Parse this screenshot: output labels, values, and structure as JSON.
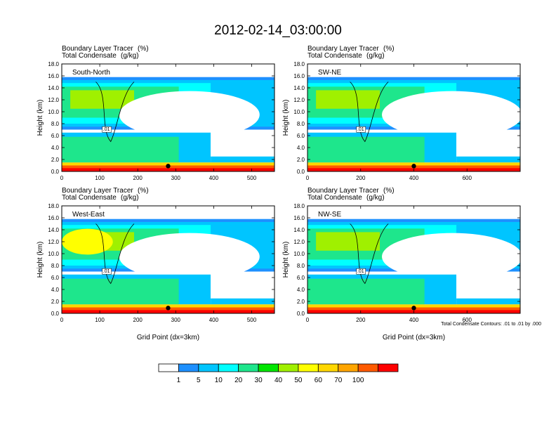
{
  "chart_data": {
    "type": "contour",
    "title": "2012-02-14_03:00:00",
    "subtitle_line1_left": "Boundary Layer Tracer",
    "subtitle_line1_right": "(%)",
    "subtitle_line2_left": "Total Condensate",
    "subtitle_line2_right": "(g/kg)",
    "xlabel": "Grid Point (dx=3km)",
    "ylabel": "Height (km)",
    "ylim": [
      0,
      18
    ],
    "yticks": [
      "0.0",
      "2.0",
      "4.0",
      "6.0",
      "8.0",
      "10.0",
      "12.0",
      "14.0",
      "16.0",
      "18.0"
    ],
    "contour_note": "Total Condensate Contours: .01 to .01 by .000",
    "contour_label": ".01",
    "colorbar": {
      "levels": [
        "1",
        "5",
        "10",
        "20",
        "30",
        "40",
        "50",
        "60",
        "70",
        "100"
      ],
      "colors": [
        "#ffffff",
        "#1e90ff",
        "#00c5ff",
        "#00ffff",
        "#1ee68c",
        "#00e600",
        "#a0f000",
        "#ffff00",
        "#ffd700",
        "#ffa500",
        "#ff5a00",
        "#ff0000"
      ]
    },
    "panels": [
      {
        "name": "South-North",
        "xlim": [
          0,
          560
        ],
        "xticks": [
          0,
          100,
          200,
          300,
          400,
          500
        ]
      },
      {
        "name": "SW-NE",
        "xlim": [
          0,
          800
        ],
        "xticks": [
          0,
          200,
          400,
          600
        ]
      },
      {
        "name": "West-East",
        "xlim": [
          0,
          560
        ],
        "xticks": [
          0,
          100,
          200,
          300,
          400,
          500
        ]
      },
      {
        "name": "NW-SE",
        "xlim": [
          0,
          800
        ],
        "xticks": [
          0,
          200,
          400,
          600
        ]
      }
    ]
  }
}
